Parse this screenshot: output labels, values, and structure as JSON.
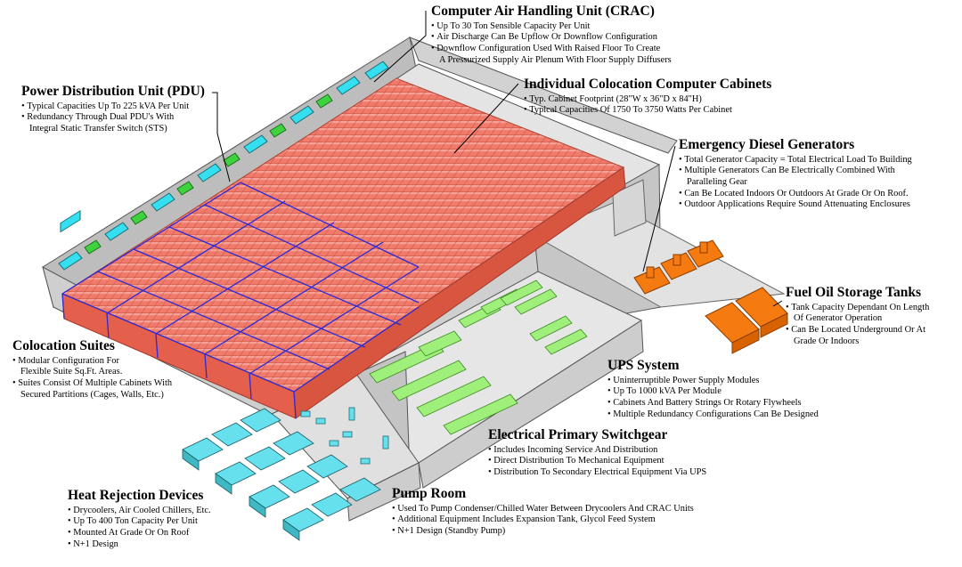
{
  "sections": {
    "crac": {
      "title": "Computer Air Handling Unit (CRAC)",
      "bullets": [
        "Up To 30 Ton Sensible Capacity Per Unit",
        "Air Discharge Can Be Upflow Or Downflow Configuration",
        "Downflow Configuration Used With Raised Floor To Create",
        "A Pressurized Supply Air Plenum With Floor Supply Diffusers"
      ]
    },
    "pdu": {
      "title": "Power Distribution Unit (PDU)",
      "bullets": [
        "Typical Capacities Up To 225 kVA Per Unit",
        "Redundancy Through Dual PDU's With",
        "Integral Static Transfer Switch (STS)"
      ]
    },
    "cabinets": {
      "title": "Individual Colocation Computer Cabinets",
      "bullets": [
        "Typ. Cabinet Footprint (28\"W x 36\"D x 84\"H)",
        "Typical Capacities Of 1750 To 3750 Watts Per Cabinet"
      ]
    },
    "generators": {
      "title": "Emergency Diesel Generators",
      "bullets": [
        "Total Generator Capacity = Total Electrical Load To Building",
        "Multiple Generators Can Be Electrically Combined With",
        "Paralleling Gear",
        "Can Be Located Indoors Or Outdoors At Grade Or On Roof.",
        "Outdoor Applications Require Sound Attenuating Enclosures"
      ]
    },
    "fuel": {
      "title": "Fuel Oil Storage Tanks",
      "bullets": [
        "Tank Capacity Dependant On Length",
        "Of Generator Operation",
        "Can Be Located Underground Or At",
        "Grade Or Indoors"
      ]
    },
    "suites": {
      "title": "Colocation Suites",
      "bullets": [
        "Modular Configuration For",
        "Flexible Suite Sq.Ft. Areas.",
        "Suites Consist Of Multiple Cabinets With",
        "Secured Partitions (Cages, Walls, Etc.)"
      ]
    },
    "ups": {
      "title": "UPS System",
      "bullets": [
        "Uninterruptible Power Supply Modules",
        "Up To 1000 kVA Per Module",
        "Cabinets And Battery Strings Or Rotary Flywheels",
        "Multiple Redundancy Configurations Can Be Designed"
      ]
    },
    "switchgear": {
      "title": "Electrical Primary Switchgear",
      "bullets": [
        "Includes Incoming Service And Distribution",
        "Direct Distribution To Mechanical Equipment",
        "Distribution To Secondary Electrical Equipment Via UPS"
      ]
    },
    "heat": {
      "title": "Heat Rejection Devices",
      "bullets": [
        "Drycoolers, Air Cooled Chillers, Etc.",
        "Up To 400 Ton Capacity Per Unit",
        "Mounted At Grade Or On Roof",
        "N+1 Design"
      ]
    },
    "pump": {
      "title": "Pump Room",
      "bullets": [
        "Used To Pump Condenser/Chilled Water Between Drycoolers And CRAC Units",
        "Additional Equipment Includes Expansion Tank, Glycol Feed System",
        "N+1 Design (Standby Pump)"
      ]
    }
  },
  "colors": {
    "cabinet": "#f07b6c",
    "cabinet_dark": "#d8553f",
    "crac": "#34dff0",
    "pdu": "#3ed33e",
    "suite_partition": "#2a2ad8",
    "raised_floor": "#f2e05a",
    "ups": "#9ff07a",
    "generator": "#f57a10",
    "drycooler": "#66e0ec",
    "floor": "#e6e6e6",
    "wall": "#c2c2c2",
    "ground": "#ececec"
  }
}
